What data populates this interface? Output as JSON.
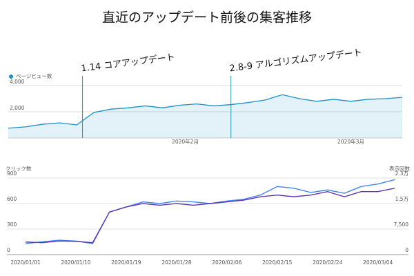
{
  "title": "直近のアップデート前後の集客推移",
  "chart_data": [
    {
      "type": "area",
      "legend": "ページビュー数",
      "color": "#1a8fc9",
      "x": [
        "2020/01/01",
        "2020/01/04",
        "2020/01/07",
        "2020/01/10",
        "2020/01/13",
        "2020/01/16",
        "2020/01/19",
        "2020/01/22",
        "2020/01/25",
        "2020/01/28",
        "2020/01/31",
        "2020/02/03",
        "2020/02/06",
        "2020/02/09",
        "2020/02/12",
        "2020/02/15",
        "2020/02/18",
        "2020/02/21",
        "2020/02/24",
        "2020/02/27",
        "2020/03/01",
        "2020/03/04",
        "2020/03/07",
        "2020/03/10"
      ],
      "values": [
        750,
        850,
        1050,
        1150,
        1000,
        1950,
        2200,
        2300,
        2450,
        2300,
        2500,
        2600,
        2450,
        2550,
        2700,
        2900,
        3300,
        3000,
        2800,
        2950,
        2800,
        2950,
        3000,
        3100
      ],
      "ylim": [
        0,
        4000
      ],
      "yticks": [
        {
          "value": 2000,
          "label": "2,000"
        },
        {
          "value": 4000,
          "label": "4,000"
        }
      ],
      "xticks": [
        {
          "value": "2020/02/01",
          "label": "2020年2月"
        },
        {
          "value": "2020/03/01",
          "label": "2020年3月"
        }
      ],
      "grid": true,
      "annotations": [
        {
          "x": "2020/01/14",
          "text": "1.14 コアアップデート"
        },
        {
          "x": "2020/02/09",
          "text": "2.8-9 アルゴリズムアップデート"
        }
      ]
    },
    {
      "type": "line",
      "ylabel": "クリック数",
      "y2label": "表示回数",
      "x": [
        "2020/01/01",
        "2020/01/04",
        "2020/01/07",
        "2020/01/10",
        "2020/01/13",
        "2020/01/16",
        "2020/01/19",
        "2020/01/22",
        "2020/01/25",
        "2020/01/28",
        "2020/01/31",
        "2020/02/03",
        "2020/02/06",
        "2020/02/09",
        "2020/02/12",
        "2020/02/15",
        "2020/02/18",
        "2020/02/21",
        "2020/02/24",
        "2020/02/27",
        "2020/03/01",
        "2020/03/04",
        "2020/03/07"
      ],
      "series": [
        {
          "name": "クリック数",
          "color": "#4285f4",
          "values": [
            130,
            150,
            170,
            160,
            130,
            500,
            560,
            620,
            600,
            630,
            620,
            600,
            630,
            650,
            700,
            800,
            780,
            730,
            760,
            720,
            800,
            830,
            880
          ]
        },
        {
          "name": "表示回数",
          "color": "#5e35b1",
          "axis": "y2",
          "values": [
            3700,
            3500,
            4000,
            3900,
            3500,
            12500,
            14000,
            15000,
            14500,
            15000,
            14500,
            15000,
            15500,
            16000,
            17000,
            17500,
            17000,
            17500,
            18500,
            17000,
            18500,
            18500,
            19500
          ]
        }
      ],
      "ylim": [
        0,
        900
      ],
      "yticks": [
        0,
        300,
        600,
        900
      ],
      "y2lim": [
        0,
        22500
      ],
      "y2ticks": [
        0,
        {
          "value": 7500,
          "label": "7,500"
        },
        {
          "value": 15000,
          "label": "1.5万"
        },
        {
          "value": 22500,
          "label": "2.3万"
        }
      ],
      "xticks": [
        "2020/01/01",
        "2020/01/10",
        "2020/01/19",
        "2020/01/28",
        "2020/02/06",
        "2020/02/15",
        "2020/02/24",
        "2020/03/04"
      ],
      "grid": true
    }
  ]
}
